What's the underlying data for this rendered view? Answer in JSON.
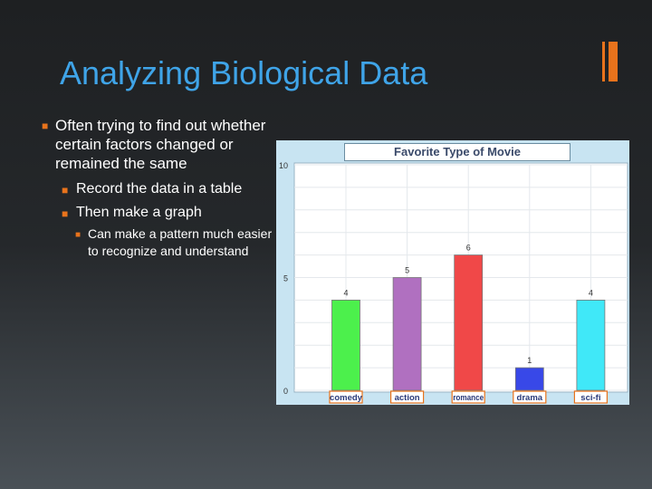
{
  "slide": {
    "title": "Analyzing Biological Data",
    "bullets": {
      "b1": "Often trying to find out whether certain factors changed or remained the same",
      "b2": "Record the data in a table",
      "b3": "Then make a graph",
      "b4": "Can make a pattern much easier to recognize and understand"
    },
    "colors": {
      "title": "#3fa4e8",
      "accent": "#e8731c",
      "text": "#ffffff"
    }
  },
  "chart_data": {
    "type": "bar",
    "title": "Favorite Type of Movie",
    "categories": [
      "comedy",
      "action",
      "romance",
      "drama",
      "sci-fi"
    ],
    "values": [
      4,
      5,
      6,
      1,
      4
    ],
    "colors": [
      "#4cf04c",
      "#b070c0",
      "#f04848",
      "#3848e8",
      "#40e8f8"
    ],
    "ylim": [
      0,
      10
    ],
    "yticks": [
      0,
      5,
      10
    ],
    "grid": true,
    "xlabel": "",
    "ylabel": ""
  }
}
